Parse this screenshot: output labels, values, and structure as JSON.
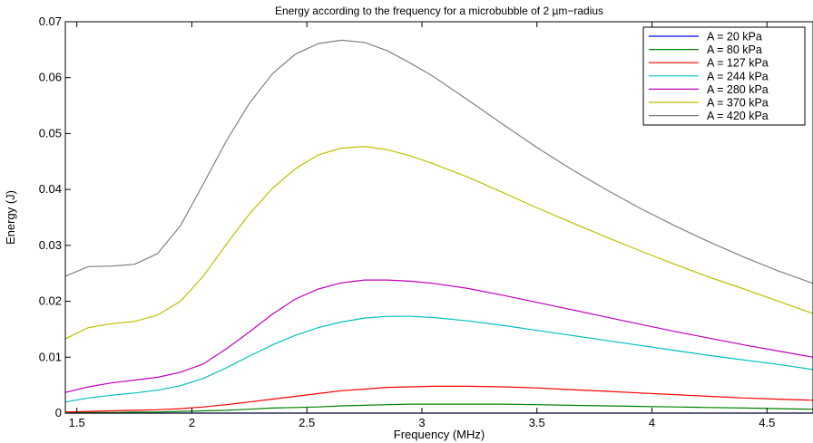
{
  "chart_data": {
    "type": "line",
    "title": "Energy according to the frequency for a microbubble of 2 µm−radius",
    "xlabel": "Frequency (MHz)",
    "ylabel": "Energy (J)",
    "xlim": [
      1.45,
      4.7
    ],
    "ylim": [
      0,
      0.07
    ],
    "xticks": [
      1.5,
      2,
      2.5,
      3,
      3.5,
      4,
      4.5
    ],
    "xtick_labels": [
      "1.5",
      "2",
      "2.5",
      "3",
      "3.5",
      "4",
      "4.5"
    ],
    "yticks": [
      0,
      0.01,
      0.02,
      0.03,
      0.04,
      0.05,
      0.06,
      0.07
    ],
    "ytick_labels": [
      "0",
      "0.01",
      "0.02",
      "0.03",
      "0.04",
      "0.05",
      "0.06",
      "0.07"
    ],
    "grid": false,
    "legend_position": "top-right",
    "x": [
      1.45,
      1.55,
      1.65,
      1.75,
      1.85,
      1.95,
      2.05,
      2.15,
      2.25,
      2.35,
      2.45,
      2.55,
      2.65,
      2.75,
      2.85,
      2.95,
      3.05,
      3.2,
      3.35,
      3.5,
      3.65,
      3.8,
      3.95,
      4.1,
      4.25,
      4.4,
      4.55,
      4.7
    ],
    "series": [
      {
        "name": "A = 20 kPa",
        "color": "#0000ff",
        "values": [
          0,
          0,
          0,
          0,
          0,
          0,
          0,
          0,
          0,
          0,
          0,
          0,
          0,
          0,
          0,
          0,
          0,
          0,
          0,
          0,
          0,
          0,
          0,
          0,
          0,
          0,
          0,
          0
        ]
      },
      {
        "name": "A = 80 kPa",
        "color": "#008000",
        "values": [
          0.0001,
          0.0001,
          0.0001,
          0.0002,
          0.0002,
          0.0003,
          0.0004,
          0.0005,
          0.0007,
          0.0009,
          0.001,
          0.0011,
          0.0013,
          0.0014,
          0.0015,
          0.0016,
          0.0016,
          0.0016,
          0.0016,
          0.0015,
          0.0014,
          0.0013,
          0.0012,
          0.0011,
          0.001,
          0.0009,
          0.0008,
          0.0007
        ]
      },
      {
        "name": "A = 127 kPa",
        "color": "#ff0000",
        "values": [
          0.0002,
          0.0003,
          0.0004,
          0.0005,
          0.0006,
          0.0008,
          0.0011,
          0.0015,
          0.002,
          0.0025,
          0.003,
          0.0035,
          0.004,
          0.0043,
          0.0046,
          0.0047,
          0.0048,
          0.0048,
          0.0047,
          0.0045,
          0.0042,
          0.0039,
          0.0036,
          0.0033,
          0.003,
          0.0027,
          0.0025,
          0.0023
        ]
      },
      {
        "name": "A = 244 kPa",
        "color": "#00bfbf",
        "values": [
          0.002,
          0.0027,
          0.0032,
          0.0036,
          0.0041,
          0.0049,
          0.0062,
          0.0081,
          0.0102,
          0.0122,
          0.0139,
          0.0153,
          0.0163,
          0.017,
          0.0173,
          0.0173,
          0.0171,
          0.0165,
          0.0157,
          0.0148,
          0.0139,
          0.013,
          0.0121,
          0.0112,
          0.0103,
          0.0095,
          0.0087,
          0.0078
        ]
      },
      {
        "name": "A = 280 kPa",
        "color": "#bf00bf",
        "values": [
          0.0037,
          0.0047,
          0.0054,
          0.0059,
          0.0064,
          0.0073,
          0.0088,
          0.0115,
          0.0145,
          0.0177,
          0.0204,
          0.0222,
          0.0233,
          0.0238,
          0.0238,
          0.0236,
          0.0232,
          0.0223,
          0.0211,
          0.0198,
          0.0185,
          0.0172,
          0.0159,
          0.0146,
          0.0134,
          0.0122,
          0.0111,
          0.01
        ]
      },
      {
        "name": "A = 370 kPa",
        "color": "#bfbf00",
        "values": [
          0.0133,
          0.0153,
          0.016,
          0.0164,
          0.0175,
          0.02,
          0.0245,
          0.0302,
          0.0356,
          0.0402,
          0.0437,
          0.0462,
          0.0474,
          0.0477,
          0.0471,
          0.046,
          0.0446,
          0.0422,
          0.0395,
          0.0367,
          0.0341,
          0.0315,
          0.029,
          0.0266,
          0.0243,
          0.0222,
          0.02,
          0.0178
        ]
      },
      {
        "name": "A = 420 kPa",
        "color": "#808080",
        "values": [
          0.0245,
          0.0262,
          0.0263,
          0.0266,
          0.0285,
          0.0335,
          0.041,
          0.0487,
          0.0554,
          0.0607,
          0.0642,
          0.0661,
          0.0667,
          0.0663,
          0.0648,
          0.0626,
          0.0602,
          0.056,
          0.0517,
          0.0475,
          0.0436,
          0.04,
          0.0366,
          0.0335,
          0.0306,
          0.0279,
          0.0254,
          0.0232
        ]
      }
    ]
  }
}
